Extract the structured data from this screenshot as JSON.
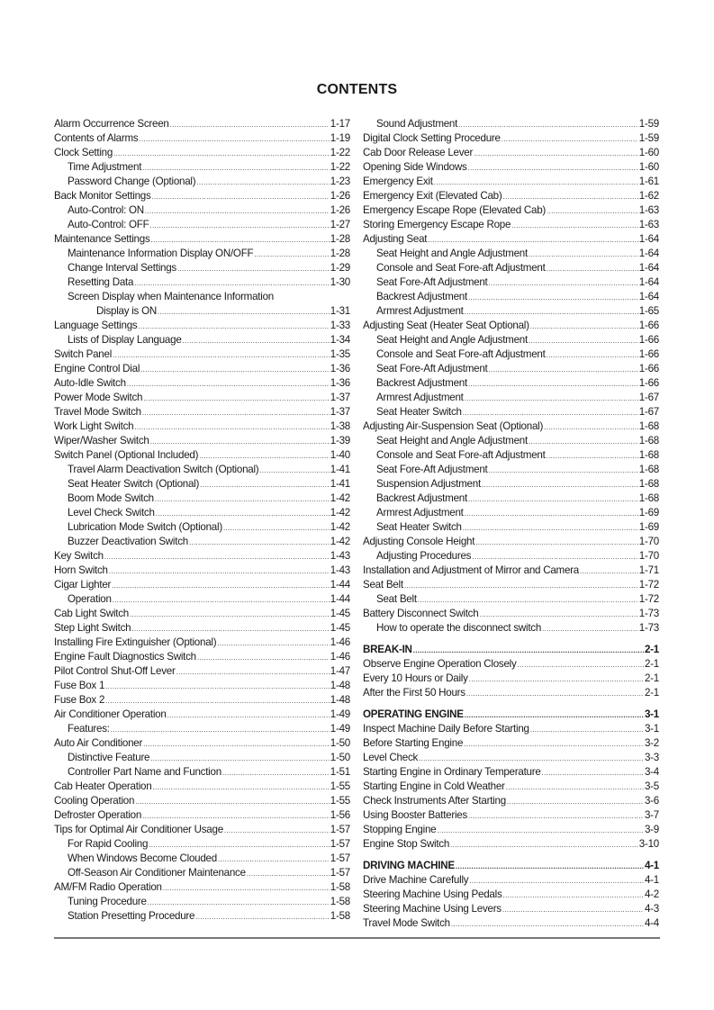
{
  "title": "CONTENTS",
  "left_column": [
    {
      "label": "Alarm Occurrence Screen",
      "page": "1-17",
      "level": 0
    },
    {
      "label": "Contents of Alarms",
      "page": "1-19",
      "level": 0
    },
    {
      "label": "Clock Setting",
      "page": "1-22",
      "level": 0
    },
    {
      "label": "Time Adjustment",
      "page": "1-22",
      "level": 1
    },
    {
      "label": "Password Change (Optional)",
      "page": "1-23",
      "level": 1
    },
    {
      "label": "Back Monitor Settings",
      "page": "1-26",
      "level": 0
    },
    {
      "label": "Auto-Control: ON",
      "page": "1-26",
      "level": 1
    },
    {
      "label": "Auto-Control: OFF",
      "page": "1-27",
      "level": 1
    },
    {
      "label": "Maintenance Settings",
      "page": "1-28",
      "level": 0
    },
    {
      "label": "Maintenance Information Display ON/OFF",
      "page": "1-28",
      "level": 1
    },
    {
      "label": "Change Interval Settings",
      "page": "1-29",
      "level": 1
    },
    {
      "label": "Resetting Data",
      "page": "1-30",
      "level": 1
    },
    {
      "label": "Screen Display when Maintenance Information",
      "page": "",
      "level": 1
    },
    {
      "label": "Display is ON",
      "page": "1-31",
      "level": 2
    },
    {
      "label": "Language Settings",
      "page": "1-33",
      "level": 0
    },
    {
      "label": "Lists of Display Language",
      "page": "1-34",
      "level": 1
    },
    {
      "label": "Switch Panel",
      "page": "1-35",
      "level": 0
    },
    {
      "label": "Engine Control Dial",
      "page": "1-36",
      "level": 0
    },
    {
      "label": "Auto-Idle Switch",
      "page": "1-36",
      "level": 0
    },
    {
      "label": "Power Mode Switch",
      "page": "1-37",
      "level": 0
    },
    {
      "label": "Travel Mode Switch",
      "page": "1-37",
      "level": 0
    },
    {
      "label": "Work Light Switch",
      "page": "1-38",
      "level": 0
    },
    {
      "label": "Wiper/Washer Switch",
      "page": "1-39",
      "level": 0
    },
    {
      "label": "Switch Panel (Optional Included)",
      "page": "1-40",
      "level": 0
    },
    {
      "label": "Travel Alarm Deactivation Switch (Optional)",
      "page": "1-41",
      "level": 1
    },
    {
      "label": "Seat Heater Switch (Optional)",
      "page": "1-41",
      "level": 1
    },
    {
      "label": "Boom Mode Switch",
      "page": "1-42",
      "level": 1
    },
    {
      "label": "Level Check Switch",
      "page": "1-42",
      "level": 1
    },
    {
      "label": "Lubrication Mode Switch (Optional)",
      "page": "1-42",
      "level": 1
    },
    {
      "label": "Buzzer Deactivation Switch",
      "page": "1-42",
      "level": 1
    },
    {
      "label": "Key Switch",
      "page": "1-43",
      "level": 0
    },
    {
      "label": "Horn Switch",
      "page": "1-43",
      "level": 0
    },
    {
      "label": "Cigar Lighter",
      "page": "1-44",
      "level": 0
    },
    {
      "label": "Operation",
      "page": "1-44",
      "level": 1
    },
    {
      "label": "Cab Light Switch",
      "page": "1-45",
      "level": 0
    },
    {
      "label": "Step Light Switch",
      "page": "1-45",
      "level": 0
    },
    {
      "label": "Installing Fire Extinguisher (Optional)",
      "page": "1-46",
      "level": 0
    },
    {
      "label": "Engine Fault Diagnostics Switch",
      "page": "1-46",
      "level": 0
    },
    {
      "label": "Pilot Control Shut-Off Lever",
      "page": "1-47",
      "level": 0
    },
    {
      "label": "Fuse Box 1",
      "page": "1-48",
      "level": 0
    },
    {
      "label": "Fuse Box 2",
      "page": "1-48",
      "level": 0
    },
    {
      "label": "Air Conditioner Operation",
      "page": "1-49",
      "level": 0
    },
    {
      "label": "Features:",
      "page": "1-49",
      "level": 1
    },
    {
      "label": "Auto Air Conditioner",
      "page": "1-50",
      "level": 0
    },
    {
      "label": "Distinctive Feature",
      "page": "1-50",
      "level": 1
    },
    {
      "label": "Controller Part Name and Function",
      "page": "1-51",
      "level": 1
    },
    {
      "label": "Cab Heater Operation",
      "page": "1-55",
      "level": 0
    },
    {
      "label": "Cooling Operation",
      "page": "1-55",
      "level": 0
    },
    {
      "label": "Defroster Operation",
      "page": "1-56",
      "level": 0
    },
    {
      "label": "Tips for Optimal Air Conditioner Usage",
      "page": "1-57",
      "level": 0
    },
    {
      "label": "For Rapid Cooling",
      "page": "1-57",
      "level": 1
    },
    {
      "label": "When Windows Become Clouded",
      "page": "1-57",
      "level": 1
    },
    {
      "label": "Off-Season Air Conditioner Maintenance",
      "page": "1-57",
      "level": 1
    },
    {
      "label": "AM/FM Radio Operation",
      "page": "1-58",
      "level": 0
    },
    {
      "label": "Tuning Procedure",
      "page": "1-58",
      "level": 1
    },
    {
      "label": "Station Presetting Procedure",
      "page": "1-58",
      "level": 1
    }
  ],
  "right_column": [
    {
      "label": "Sound Adjustment",
      "page": "1-59",
      "level": 1
    },
    {
      "label": "Digital Clock Setting Procedure",
      "page": "1-59",
      "level": 0
    },
    {
      "label": "Cab Door Release Lever",
      "page": "1-60",
      "level": 0
    },
    {
      "label": "Opening Side Windows",
      "page": "1-60",
      "level": 0
    },
    {
      "label": "Emergency Exit",
      "page": "1-61",
      "level": 0
    },
    {
      "label": "Emergency Exit (Elevated Cab)",
      "page": "1-62",
      "level": 0
    },
    {
      "label": "Emergency Escape Rope (Elevated Cab)",
      "page": "1-63",
      "level": 0
    },
    {
      "label": "Storing Emergency Escape Rope",
      "page": "1-63",
      "level": 0
    },
    {
      "label": "Adjusting Seat",
      "page": "1-64",
      "level": 0
    },
    {
      "label": "Seat Height and Angle Adjustment",
      "page": "1-64",
      "level": 1
    },
    {
      "label": "Console and Seat Fore-aft Adjustment",
      "page": "1-64",
      "level": 1
    },
    {
      "label": "Seat Fore-Aft Adjustment",
      "page": "1-64",
      "level": 1
    },
    {
      "label": "Backrest Adjustment",
      "page": "1-64",
      "level": 1
    },
    {
      "label": "Armrest Adjustment",
      "page": "1-65",
      "level": 1
    },
    {
      "label": "Adjusting Seat (Heater Seat Optional)",
      "page": "1-66",
      "level": 0
    },
    {
      "label": "Seat Height and Angle Adjustment",
      "page": "1-66",
      "level": 1
    },
    {
      "label": "Console and Seat Fore-aft Adjustment",
      "page": "1-66",
      "level": 1
    },
    {
      "label": "Seat Fore-Aft Adjustment",
      "page": "1-66",
      "level": 1
    },
    {
      "label": "Backrest Adjustment",
      "page": "1-66",
      "level": 1
    },
    {
      "label": "Armrest Adjustment",
      "page": "1-67",
      "level": 1
    },
    {
      "label": "Seat Heater Switch",
      "page": "1-67",
      "level": 1
    },
    {
      "label": "Adjusting Air-Suspension Seat (Optional)",
      "page": "1-68",
      "level": 0
    },
    {
      "label": "Seat Height and Angle Adjustment",
      "page": "1-68",
      "level": 1
    },
    {
      "label": "Console and Seat Fore-aft Adjustment",
      "page": "1-68",
      "level": 1
    },
    {
      "label": "Seat Fore-Aft Adjustment",
      "page": "1-68",
      "level": 1
    },
    {
      "label": "Suspension Adjustment",
      "page": "1-68",
      "level": 1
    },
    {
      "label": "Backrest Adjustment",
      "page": "1-68",
      "level": 1
    },
    {
      "label": "Armrest Adjustment",
      "page": "1-69",
      "level": 1
    },
    {
      "label": "Seat Heater Switch",
      "page": "1-69",
      "level": 1
    },
    {
      "label": "Adjusting Console Height",
      "page": "1-70",
      "level": 0
    },
    {
      "label": "Adjusting Procedures",
      "page": "1-70",
      "level": 1
    },
    {
      "label": "Installation and Adjustment of Mirror and Camera",
      "page": "1-71",
      "level": 0
    },
    {
      "label": "Seat Belt",
      "page": "1-72",
      "level": 0
    },
    {
      "label": "Seat Belt",
      "page": "1-72",
      "level": 1
    },
    {
      "label": "Battery Disconnect Switch",
      "page": "1-73",
      "level": 0
    },
    {
      "label": "How to operate the disconnect switch",
      "page": "1-73",
      "level": 1
    },
    {
      "label": "BREAK-IN",
      "page": "2-1",
      "level": 0,
      "heading": true
    },
    {
      "label": "Observe Engine Operation Closely",
      "page": "2-1",
      "level": 0
    },
    {
      "label": "Every 10 Hours or Daily",
      "page": "2-1",
      "level": 0
    },
    {
      "label": "After the First 50 Hours",
      "page": "2-1",
      "level": 0
    },
    {
      "label": "OPERATING ENGINE",
      "page": "3-1",
      "level": 0,
      "heading": true
    },
    {
      "label": "Inspect Machine Daily Before Starting",
      "page": "3-1",
      "level": 0
    },
    {
      "label": "Before Starting Engine",
      "page": "3-2",
      "level": 0
    },
    {
      "label": "Level Check",
      "page": "3-3",
      "level": 0
    },
    {
      "label": "Starting Engine in Ordinary Temperature",
      "page": "3-4",
      "level": 0
    },
    {
      "label": "Starting Engine in Cold Weather",
      "page": "3-5",
      "level": 0
    },
    {
      "label": "Check Instruments After Starting",
      "page": "3-6",
      "level": 0
    },
    {
      "label": "Using Booster Batteries",
      "page": "3-7",
      "level": 0
    },
    {
      "label": "Stopping Engine",
      "page": "3-9",
      "level": 0
    },
    {
      "label": "Engine Stop Switch",
      "page": "3-10",
      "level": 0
    },
    {
      "label": "DRIVING MACHINE",
      "page": "4-1",
      "level": 0,
      "heading": true
    },
    {
      "label": "Drive Machine Carefully",
      "page": "4-1",
      "level": 0
    },
    {
      "label": "Steering Machine Using Pedals",
      "page": "4-2",
      "level": 0
    },
    {
      "label": "Steering Machine Using Levers",
      "page": "4-3",
      "level": 0
    },
    {
      "label": "Travel Mode Switch",
      "page": "4-4",
      "level": 0
    }
  ]
}
